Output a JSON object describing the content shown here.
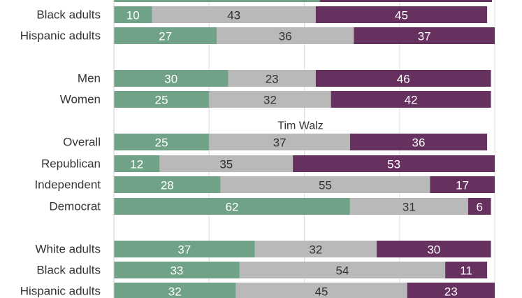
{
  "chart_data": {
    "type": "bar",
    "orientation": "horizontal",
    "stacked": true,
    "xlim": [
      0,
      100
    ],
    "grid": true,
    "colors": {
      "favorable": "#6fa287",
      "neutral": "#b9b9b9",
      "unfavorable": "#66305f"
    },
    "sections": [
      {
        "title": "",
        "rows": [
          {
            "label": "",
            "values": [
              null,
              null,
              null
            ],
            "partial": true
          },
          {
            "label": "Black adults",
            "values": [
              10,
              43,
              45
            ]
          },
          {
            "label": "Hispanic adults",
            "values": [
              27,
              36,
              37
            ]
          }
        ]
      },
      {
        "title": "",
        "rows": [
          {
            "label": "Men",
            "values": [
              30,
              23,
              46
            ]
          },
          {
            "label": "Women",
            "values": [
              25,
              32,
              42
            ]
          }
        ]
      },
      {
        "title": "Tim Walz",
        "rows": [
          {
            "label": "Overall",
            "values": [
              25,
              37,
              36
            ]
          },
          {
            "label": "Republican",
            "values": [
              12,
              35,
              53
            ]
          },
          {
            "label": "Independent",
            "values": [
              28,
              55,
              17
            ]
          },
          {
            "label": "Democrat",
            "values": [
              62,
              31,
              6
            ]
          }
        ]
      },
      {
        "title": "",
        "rows": [
          {
            "label": "White adults",
            "values": [
              37,
              32,
              30
            ]
          },
          {
            "label": "Black adults",
            "values": [
              33,
              54,
              11
            ]
          },
          {
            "label": "Hispanic adults",
            "values": [
              32,
              45,
              23
            ]
          }
        ]
      }
    ]
  }
}
